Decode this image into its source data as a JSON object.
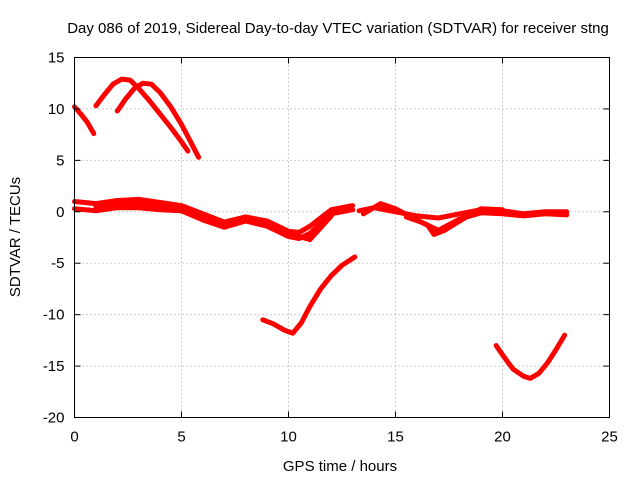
{
  "chart_data": {
    "type": "line",
    "title": "Day 086 of 2019, Sidereal Day-to-day VTEC variation (SDTVAR) for receiver stng",
    "xlabel": "GPS time / hours",
    "ylabel": "SDTVAR / TECUs",
    "xlim": [
      0,
      25
    ],
    "ylim": [
      -20,
      15
    ],
    "xticks": [
      0,
      5,
      10,
      15,
      20,
      25
    ],
    "yticks": [
      -20,
      -15,
      -10,
      -5,
      0,
      5,
      10,
      15
    ],
    "grid": true,
    "color": "#ff0000",
    "series": [
      {
        "name": "arc-early-descending",
        "x": [
          0.0,
          0.3,
          0.6,
          0.9
        ],
        "y": [
          10.2,
          9.5,
          8.7,
          7.6
        ]
      },
      {
        "name": "arc-peak-a",
        "x": [
          1.0,
          1.4,
          1.8,
          2.2,
          2.6,
          3.0,
          3.5,
          4.0,
          4.5,
          5.0,
          5.3
        ],
        "y": [
          10.3,
          11.4,
          12.4,
          12.9,
          12.8,
          12.0,
          10.8,
          9.5,
          8.2,
          6.8,
          5.9
        ]
      },
      {
        "name": "arc-peak-b",
        "x": [
          2.0,
          2.4,
          2.8,
          3.2,
          3.6,
          4.0,
          4.5,
          5.0,
          5.4,
          5.8
        ],
        "y": [
          9.8,
          11.0,
          12.0,
          12.5,
          12.4,
          11.6,
          10.2,
          8.5,
          6.9,
          5.3
        ]
      },
      {
        "name": "baseline-a",
        "x": [
          0,
          1,
          2,
          3,
          4,
          5,
          6,
          7,
          8,
          9,
          10,
          10.5,
          11,
          12,
          13
        ],
        "y": [
          1.0,
          0.8,
          1.1,
          1.2,
          0.9,
          0.6,
          -0.2,
          -1.0,
          -0.5,
          -0.9,
          -1.9,
          -2.0,
          -1.4,
          0.2,
          0.6
        ]
      },
      {
        "name": "baseline-b",
        "x": [
          0,
          1,
          2,
          3,
          4,
          5,
          6,
          7,
          8,
          9,
          10,
          10.5,
          11,
          12,
          13
        ],
        "y": [
          0.3,
          0.1,
          0.4,
          0.4,
          0.2,
          0.1,
          -0.8,
          -1.5,
          -0.9,
          -1.4,
          -2.4,
          -2.6,
          -2.1,
          -0.2,
          0.2
        ]
      },
      {
        "name": "baseline-c",
        "x": [
          1,
          2,
          3,
          4,
          5,
          6,
          7,
          8,
          9,
          10,
          11,
          12
        ],
        "y": [
          0.5,
          0.7,
          0.8,
          0.5,
          0.3,
          -0.4,
          -1.2,
          -0.7,
          -1.1,
          -2.1,
          -2.7,
          -0.4
        ]
      },
      {
        "name": "baseline-d",
        "x": [
          13.3,
          14,
          15,
          16,
          17,
          18,
          19,
          20,
          21,
          22,
          23
        ],
        "y": [
          0.1,
          0.4,
          0.0,
          -0.4,
          -0.6,
          -0.2,
          0.2,
          0.1,
          -0.2,
          0.0,
          0.0
        ]
      },
      {
        "name": "baseline-e",
        "x": [
          13.5,
          14.3,
          15,
          16,
          17,
          18,
          19,
          20,
          21,
          22,
          23
        ],
        "y": [
          -0.2,
          0.8,
          0.3,
          -0.8,
          -1.8,
          -0.7,
          -0.1,
          -0.2,
          -0.4,
          -0.2,
          -0.3
        ]
      },
      {
        "name": "baseline-f",
        "x": [
          15.5,
          16.2,
          16.5,
          16.8,
          17.3,
          18,
          19,
          20
        ],
        "y": [
          -0.5,
          -1.0,
          -1.3,
          -2.2,
          -1.8,
          -0.9,
          0.3,
          0.2
        ]
      },
      {
        "name": "dip-mid",
        "x": [
          8.8,
          9.3,
          9.8,
          10.2,
          10.6,
          11.0,
          11.5,
          12.0,
          12.5,
          13.1
        ],
        "y": [
          -10.5,
          -10.9,
          -11.5,
          -11.8,
          -10.8,
          -9.2,
          -7.5,
          -6.2,
          -5.2,
          -4.4
        ]
      },
      {
        "name": "dip-late",
        "x": [
          19.7,
          20.1,
          20.5,
          21.0,
          21.3,
          21.7,
          22.1,
          22.5,
          22.9
        ],
        "y": [
          -13.0,
          -14.2,
          -15.3,
          -16.0,
          -16.2,
          -15.7,
          -14.7,
          -13.4,
          -12.0
        ]
      }
    ]
  }
}
